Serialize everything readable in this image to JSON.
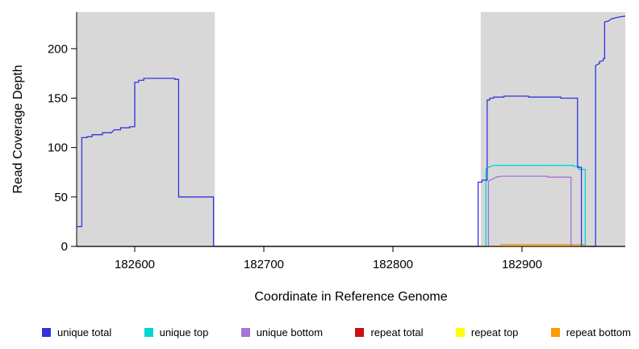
{
  "chart_data": {
    "type": "line",
    "title": "",
    "xlabel": "Coordinate in Reference Genome",
    "ylabel": "Read Coverage Depth",
    "xlim": [
      182555,
      182980
    ],
    "ylim": [
      0,
      237
    ],
    "x_ticks": [
      182600,
      182700,
      182800,
      182900
    ],
    "y_ticks": [
      0,
      50,
      100,
      150,
      200
    ],
    "grid": false,
    "legend_position": "bottom",
    "shade_color": "#d8d8d8",
    "shaded_regions": [
      [
        182555,
        182662
      ],
      [
        182868,
        182980
      ]
    ],
    "series": [
      {
        "id": "unique-total",
        "name": "unique total",
        "color": "#3333dd",
        "points": [
          [
            182555,
            20
          ],
          [
            182559,
            20
          ],
          [
            182559,
            110
          ],
          [
            182563,
            110
          ],
          [
            182563,
            111
          ],
          [
            182567,
            111
          ],
          [
            182567,
            113
          ],
          [
            182575,
            113
          ],
          [
            182575,
            115
          ],
          [
            182582,
            115
          ],
          [
            182584,
            118
          ],
          [
            182589,
            118
          ],
          [
            182589,
            120
          ],
          [
            182596,
            120
          ],
          [
            182596,
            121
          ],
          [
            182600,
            121
          ],
          [
            182600,
            166
          ],
          [
            182603,
            166
          ],
          [
            182603,
            168
          ],
          [
            182607,
            168
          ],
          [
            182607,
            170
          ],
          [
            182631,
            170
          ],
          [
            182631,
            169
          ],
          [
            182634,
            169
          ],
          [
            182634,
            50
          ],
          [
            182661,
            50
          ],
          [
            182661,
            0
          ],
          [
            182866,
            0
          ],
          [
            182866,
            65
          ],
          [
            182869,
            65
          ],
          [
            182869,
            67
          ],
          [
            182873,
            67
          ],
          [
            182873,
            148
          ],
          [
            182875,
            148
          ],
          [
            182875,
            150
          ],
          [
            182878,
            150
          ],
          [
            182878,
            151
          ],
          [
            182886,
            151
          ],
          [
            182886,
            152
          ],
          [
            182905,
            152
          ],
          [
            182905,
            151
          ],
          [
            182930,
            151
          ],
          [
            182930,
            150
          ],
          [
            182943,
            150
          ],
          [
            182943,
            80
          ],
          [
            182946,
            80
          ],
          [
            182946,
            0
          ],
          [
            182957,
            0
          ],
          [
            182957,
            183
          ],
          [
            182960,
            185
          ],
          [
            182960,
            187
          ],
          [
            182963,
            188
          ],
          [
            182963,
            190
          ],
          [
            182964,
            190
          ],
          [
            182964,
            227
          ],
          [
            182967,
            228
          ],
          [
            182969,
            230
          ],
          [
            182972,
            231
          ],
          [
            182975,
            232
          ],
          [
            182980,
            233
          ]
        ]
      },
      {
        "id": "unique-top",
        "name": "unique top",
        "color": "#00d5d5",
        "points": [
          [
            182555,
            0
          ],
          [
            182872,
            0
          ],
          [
            182872,
            78
          ],
          [
            182874,
            80
          ],
          [
            182876,
            81
          ],
          [
            182878,
            82
          ],
          [
            182940,
            82
          ],
          [
            182940,
            81
          ],
          [
            182944,
            81
          ],
          [
            182944,
            78
          ],
          [
            182949,
            78
          ],
          [
            182949,
            0
          ],
          [
            182980,
            0
          ]
        ]
      },
      {
        "id": "unique-bottom",
        "name": "unique bottom",
        "color": "#a673d9",
        "points": [
          [
            182555,
            0
          ],
          [
            182874,
            0
          ],
          [
            182874,
            66
          ],
          [
            182877,
            68
          ],
          [
            182880,
            70
          ],
          [
            182884,
            71
          ],
          [
            182920,
            71
          ],
          [
            182920,
            70
          ],
          [
            182938,
            70
          ],
          [
            182938,
            0
          ],
          [
            182980,
            0
          ]
        ]
      },
      {
        "id": "repeat-total",
        "name": "repeat total",
        "color": "#cc1111",
        "points": [
          [
            182555,
            0
          ],
          [
            182980,
            0
          ]
        ]
      },
      {
        "id": "repeat-top",
        "name": "repeat top",
        "color": "#ffff00",
        "points": [
          [
            182555,
            0
          ],
          [
            182980,
            0
          ]
        ]
      },
      {
        "id": "repeat-bottom",
        "name": "repeat bottom",
        "color": "#ff9900",
        "points": [
          [
            182555,
            0
          ],
          [
            182884,
            0
          ],
          [
            182884,
            2
          ],
          [
            182949,
            2
          ],
          [
            182949,
            0
          ],
          [
            182980,
            0
          ]
        ]
      }
    ]
  }
}
